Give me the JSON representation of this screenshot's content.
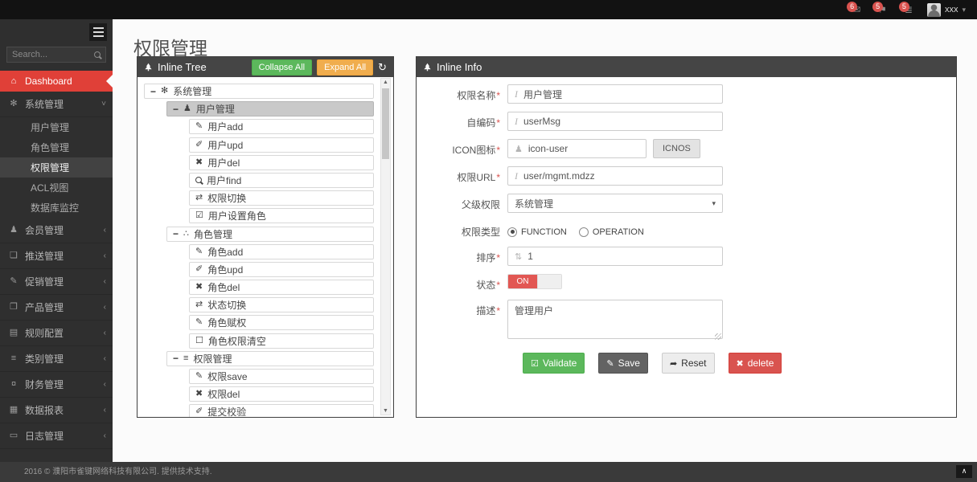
{
  "topbar": {
    "badges": [
      {
        "icon": "envelope",
        "count": "6"
      },
      {
        "icon": "flag",
        "count": "5"
      },
      {
        "icon": "tasks",
        "count": "5"
      }
    ],
    "user": {
      "name": "xxx"
    }
  },
  "sidebar": {
    "search_placeholder": "Search...",
    "items": [
      {
        "type": "top",
        "icon": "home",
        "label": "Dashboard",
        "active": true
      },
      {
        "type": "top",
        "icon": "gears",
        "label": "系统管理",
        "expanded": true
      },
      {
        "type": "sub",
        "label": "用户管理"
      },
      {
        "type": "sub",
        "label": "角色管理"
      },
      {
        "type": "sub",
        "label": "权限管理",
        "active": true
      },
      {
        "type": "sub",
        "label": "ACL视图"
      },
      {
        "type": "sub",
        "label": "数据库监控"
      },
      {
        "type": "top",
        "icon": "user",
        "label": "会员管理"
      },
      {
        "type": "top",
        "icon": "push",
        "label": "推送管理"
      },
      {
        "type": "top",
        "icon": "pencil",
        "label": "促销管理"
      },
      {
        "type": "top",
        "icon": "book",
        "label": "产品管理"
      },
      {
        "type": "top",
        "icon": "news",
        "label": "规则配置"
      },
      {
        "type": "top",
        "icon": "list",
        "label": "类别管理"
      },
      {
        "type": "top",
        "icon": "finance",
        "label": "财务管理"
      },
      {
        "type": "top",
        "icon": "chart",
        "label": "数据报表"
      },
      {
        "type": "top",
        "icon": "folder",
        "label": "日志管理"
      }
    ]
  },
  "page": {
    "title": "权限管理"
  },
  "tree_panel": {
    "title": "Inline Tree",
    "collapse_all": "Collapse All",
    "expand_all": "Expand All",
    "items": [
      {
        "level": 0,
        "expander": "−",
        "icon": "gears",
        "label": "系统管理"
      },
      {
        "level": 1,
        "expander": "−",
        "icon": "user",
        "label": "用户管理",
        "selected": true
      },
      {
        "level": 2,
        "icon": "pencil",
        "label": "用户add"
      },
      {
        "level": 2,
        "icon": "edit",
        "label": "用户upd"
      },
      {
        "level": 2,
        "icon": "x",
        "label": "用户del"
      },
      {
        "level": 2,
        "icon": "search",
        "label": "用户find"
      },
      {
        "level": 2,
        "icon": "switch",
        "label": "权限切换"
      },
      {
        "level": 2,
        "icon": "check-square",
        "label": "用户设置角色"
      },
      {
        "level": 1,
        "expander": "−",
        "icon": "sitemap",
        "label": "角色管理"
      },
      {
        "level": 2,
        "icon": "pencil",
        "label": "角色add"
      },
      {
        "level": 2,
        "icon": "edit",
        "label": "角色upd"
      },
      {
        "level": 2,
        "icon": "x",
        "label": "角色del"
      },
      {
        "level": 2,
        "icon": "switch",
        "label": "状态切换"
      },
      {
        "level": 2,
        "icon": "pencil",
        "label": "角色赋权"
      },
      {
        "level": 2,
        "icon": "square",
        "label": "角色权限清空"
      },
      {
        "level": 1,
        "expander": "−",
        "icon": "list",
        "label": "权限管理"
      },
      {
        "level": 2,
        "icon": "pencil",
        "label": "权限save"
      },
      {
        "level": 2,
        "icon": "x",
        "label": "权限del"
      },
      {
        "level": 2,
        "icon": "edit",
        "label": "提交校验"
      }
    ]
  },
  "info_panel": {
    "title": "Inline Info",
    "fields": {
      "name": {
        "label": "权限名称",
        "required": true,
        "value": "用户管理"
      },
      "code": {
        "label": "自编码",
        "required": true,
        "value": "userMsg"
      },
      "icon": {
        "label": "ICON图标",
        "required": true,
        "value": "icon-user",
        "button": "ICNOS"
      },
      "url": {
        "label": "权限URL",
        "required": true,
        "value": "user/mgmt.mdzz"
      },
      "parent": {
        "label": "父级权限",
        "value": "系统管理"
      },
      "type": {
        "label": "权限类型",
        "options": [
          "FUNCTION",
          "OPERATION"
        ],
        "selected": "FUNCTION"
      },
      "sort": {
        "label": "排序",
        "required": true,
        "value": "1"
      },
      "status": {
        "label": "状态",
        "required": true,
        "value": "ON"
      },
      "desc": {
        "label": "描述",
        "required": true,
        "value": "管理用户"
      }
    },
    "buttons": {
      "validate": "Validate",
      "save": "Save",
      "reset": "Reset",
      "delete": "delete"
    }
  },
  "footer": {
    "text": "2016 © 濮阳市雀键网络科技有限公司. 提供技术支持."
  },
  "colors": {
    "accent_red": "#e04038",
    "green": "#5cb85c",
    "orange": "#f0ad4e",
    "danger": "#d9534f",
    "header_gray": "#454545"
  }
}
